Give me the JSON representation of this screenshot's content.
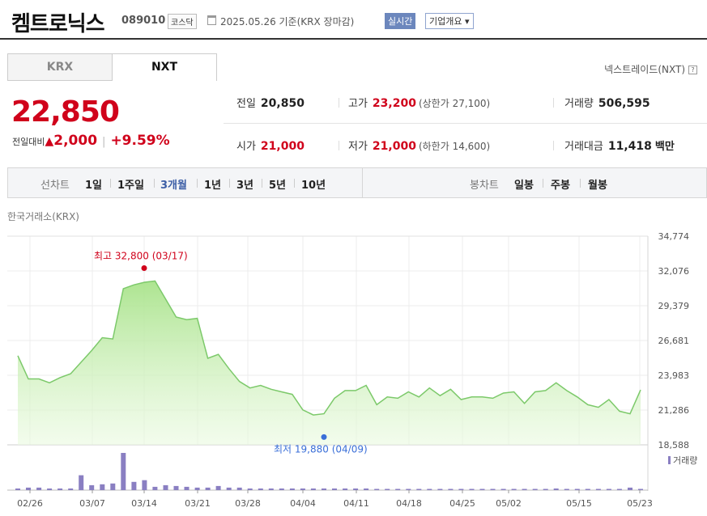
{
  "header": {
    "company_name": "켐트로닉스",
    "ticker": "089010",
    "market": "코스닥",
    "date_text": "2025.05.26  기준(KRX 장마감)",
    "realtime_label": "실시간",
    "company_info_label": "기업개요 ▾"
  },
  "tabs": {
    "krx": "KRX",
    "nxt": "NXT"
  },
  "nxt_label": "넥스트레이드(NXT)",
  "help_icon": "?",
  "price": {
    "current": "22,850",
    "change_label": "전일대비",
    "change_icon": "▲",
    "change_amount": "2,000",
    "change_sep": "|",
    "change_percent": "+9.59%",
    "up_color": "#d0021b"
  },
  "stats": {
    "prev_close": {
      "label": "전일",
      "value": "20,850"
    },
    "high": {
      "label": "고가",
      "value": "23,200",
      "sub": "(상한가 27,100)"
    },
    "volume": {
      "label": "거래량",
      "value": "506,595"
    },
    "open": {
      "label": "시가",
      "value": "21,000"
    },
    "low": {
      "label": "저가",
      "value": "21,000",
      "sub": "(하한가 14,600)"
    },
    "amount": {
      "label": "거래대금",
      "value": "11,418",
      "unit": "백만"
    }
  },
  "period_bar": {
    "line_label": "선차트",
    "line_periods": [
      "1일",
      "1주일",
      "3개월",
      "1년",
      "3년",
      "5년",
      "10년"
    ],
    "selected_period": "3개월",
    "candle_label": "봉차트",
    "candle_periods": [
      "일봉",
      "주봉",
      "월봉"
    ]
  },
  "exchange_label": "한국거래소(KRX)",
  "chart_data": {
    "type": "area",
    "y_ticks": [
      "34,774",
      "32,076",
      "29,379",
      "26,681",
      "23,983",
      "21,286",
      "18,588"
    ],
    "ylim": [
      18588,
      34774
    ],
    "x_ticks": [
      "02/26",
      "03/07",
      "03/14",
      "03/21",
      "03/28",
      "04/04",
      "04/11",
      "04/18",
      "04/25",
      "05/02",
      "05/15",
      "05/23"
    ],
    "high_label": "최고 32,800 (03/17)",
    "high_value": 32800,
    "low_label": "최저 19,880 (04/09)",
    "low_value": 19880,
    "volume_label": "거래량",
    "grid": true,
    "series": [
      {
        "values": [
          25500,
          23700,
          23700,
          23400,
          23800,
          24100,
          25000,
          25900,
          26900,
          26800,
          30700,
          31000,
          31200,
          31300,
          29900,
          28500,
          28300,
          28400,
          25300,
          25600,
          24500,
          23500,
          23000,
          23200,
          22900,
          22700,
          22500,
          21300,
          20900,
          21000,
          22200,
          22800,
          22800,
          23200,
          21700,
          22300,
          22200,
          22700,
          22300,
          23000,
          22400,
          22900,
          22100,
          22300,
          22300,
          22200,
          22600,
          22700,
          21800,
          22700,
          22800,
          23400,
          22800,
          22300,
          21700,
          21500,
          22100,
          21200,
          21000,
          22850
        ]
      }
    ],
    "volume_series": [
      {
        "values": [
          2,
          3,
          3,
          2,
          2,
          2,
          18,
          6,
          7,
          8,
          45,
          10,
          12,
          4,
          6,
          5,
          4,
          3,
          3,
          5,
          3,
          3,
          2,
          2,
          2,
          2,
          2,
          2,
          2,
          2,
          2,
          2,
          2,
          2,
          1,
          1,
          1,
          1,
          1,
          1,
          1,
          1,
          1,
          1,
          1,
          1,
          1,
          1,
          1,
          1,
          1,
          2,
          1,
          1,
          1,
          1,
          1,
          1,
          3,
          1
        ]
      }
    ],
    "volume_color": "#8a7fc2",
    "line_color": "#7cc96a",
    "high_color": "#d0021b",
    "low_color": "#3a6fd8"
  }
}
